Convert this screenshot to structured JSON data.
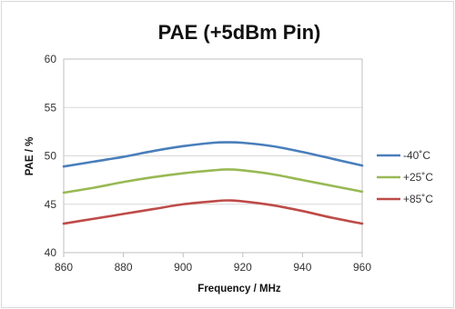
{
  "chart_data": {
    "type": "line",
    "title": "PAE (+5dBm Pin)",
    "xlabel": "Frequency / MHz",
    "ylabel": "PAE / %",
    "xlim": [
      860,
      960
    ],
    "ylim": [
      40,
      60
    ],
    "xticks": [
      860,
      880,
      900,
      920,
      940,
      960
    ],
    "yticks": [
      40,
      45,
      50,
      55,
      60
    ],
    "grid": "horizontal",
    "legend_position": "right",
    "x": [
      860,
      870,
      880,
      890,
      900,
      910,
      915,
      920,
      930,
      940,
      950,
      960
    ],
    "series": [
      {
        "name": "-40˚C",
        "color": "#4a7ebb",
        "values": [
          48.9,
          49.4,
          49.9,
          50.5,
          51.0,
          51.35,
          51.4,
          51.35,
          51.0,
          50.4,
          49.7,
          49.0
        ]
      },
      {
        "name": "+25˚C",
        "color": "#98b954",
        "values": [
          46.2,
          46.7,
          47.3,
          47.8,
          48.2,
          48.5,
          48.6,
          48.5,
          48.1,
          47.5,
          46.9,
          46.3
        ]
      },
      {
        "name": "+85˚C",
        "color": "#be4b48",
        "values": [
          43.0,
          43.5,
          44.0,
          44.5,
          45.0,
          45.3,
          45.4,
          45.3,
          44.9,
          44.3,
          43.6,
          43.0
        ]
      }
    ]
  }
}
